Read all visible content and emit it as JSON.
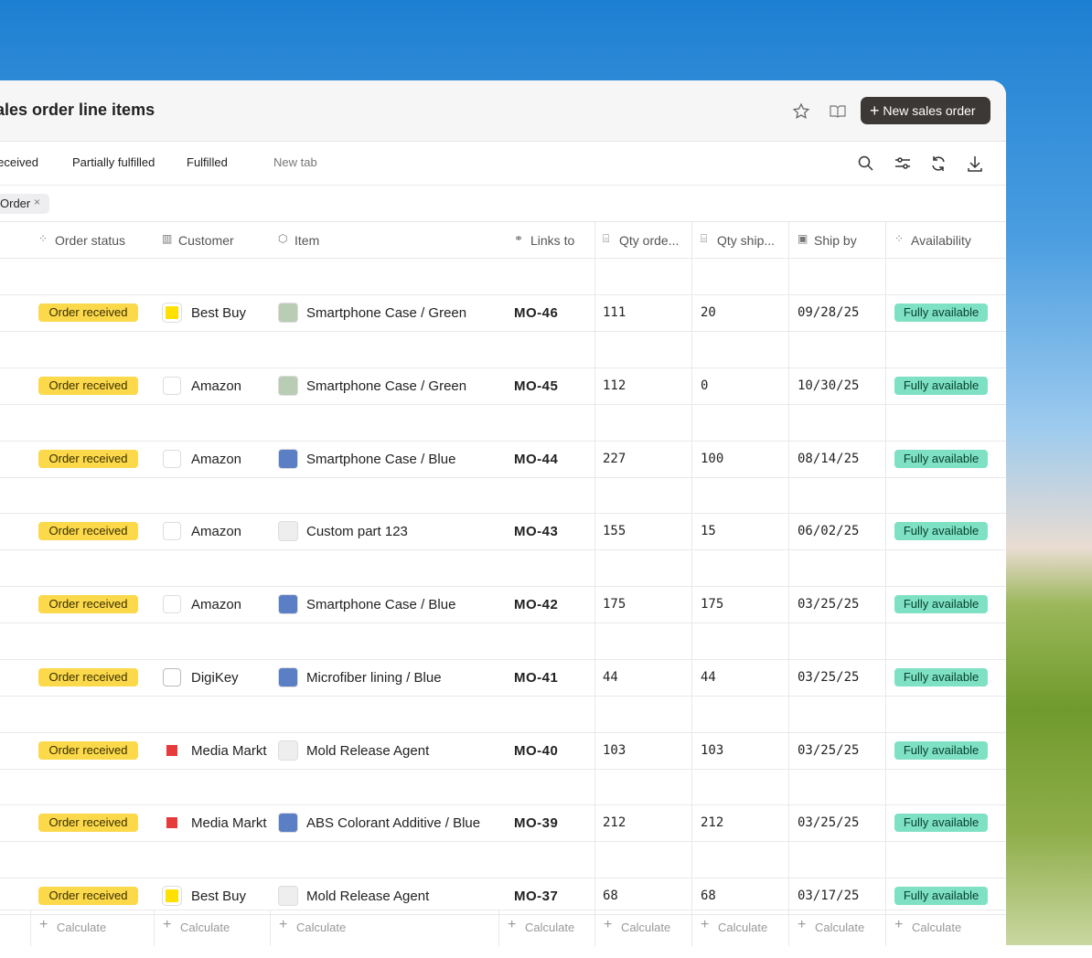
{
  "header": {
    "title": "Sales order line items",
    "new_button": "New sales order"
  },
  "tabs": [
    "Order received",
    "Partially fulfilled",
    "Fulfilled"
  ],
  "new_tab": "New tab",
  "filter": "Order",
  "table": {
    "columns": [
      "Order status",
      "Customer",
      "Item",
      "Links to",
      "Qty orde...",
      "Qty ship...",
      "Ship by",
      "Availability"
    ],
    "rows": [
      [
        "Order received",
        "Best Buy",
        "Smartphone Case / Green",
        "MO-46",
        "111",
        "20",
        "09/28/25",
        "Fully available"
      ],
      [
        "Order received",
        "Amazon",
        "Smartphone Case / Green",
        "MO-45",
        "112",
        "0",
        "10/30/25",
        "Fully available"
      ],
      [
        "Order received",
        "Amazon",
        "Smartphone Case / Blue",
        "MO-44",
        "227",
        "100",
        "08/14/25",
        "Fully available"
      ],
      [
        "Order received",
        "Amazon",
        "Custom part 123",
        "MO-43",
        "155",
        "15",
        "06/02/25",
        "Fully available"
      ],
      [
        "Order received",
        "Amazon",
        "Smartphone Case / Blue",
        "MO-42",
        "175",
        "175",
        "03/25/25",
        "Fully available"
      ],
      [
        "Order received",
        "DigiKey",
        "Microfiber lining / Blue",
        "MO-41",
        "44",
        "44",
        "03/25/25",
        "Fully available"
      ],
      [
        "Order received",
        "Media Markt",
        "Mold Release Agent",
        "MO-40",
        "103",
        "103",
        "03/25/25",
        "Fully available"
      ],
      [
        "Order received",
        "Media Markt",
        "ABS Colorant Additive / Blue",
        "MO-39",
        "212",
        "212",
        "03/25/25",
        "Fully available"
      ],
      [
        "Order received",
        "Best Buy",
        "Mold Release Agent",
        "MO-37",
        "68",
        "68",
        "03/17/25",
        "Fully available"
      ]
    ],
    "footer": [
      "Calculate",
      "Calculate",
      "Calculate",
      "Calculate",
      "Calculate",
      "Calculate",
      "Calculate",
      "Calculate"
    ]
  }
}
